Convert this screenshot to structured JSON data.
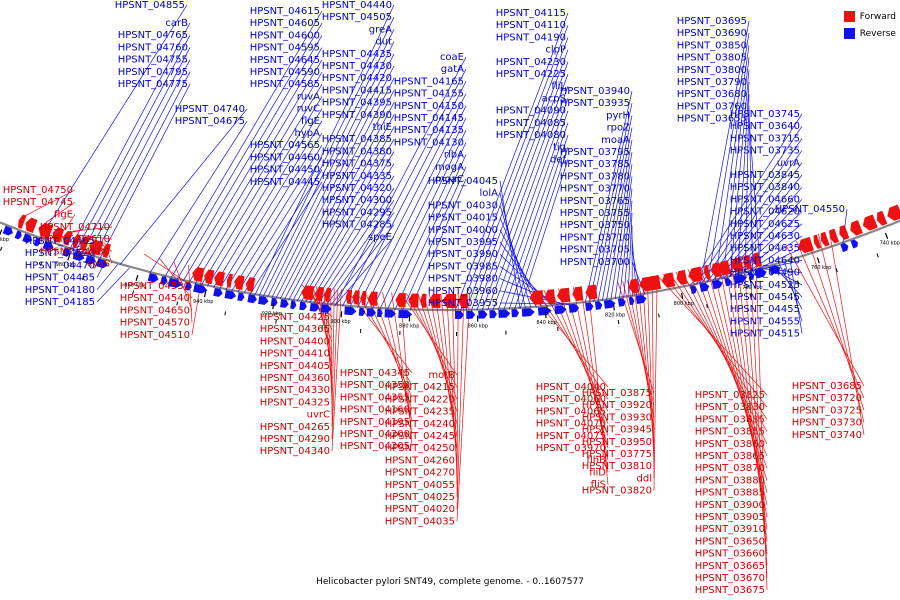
{
  "legend": {
    "forward_label": "Forward",
    "reverse_label": "Reverse",
    "forward_color": "#ee1111",
    "reverse_color": "#1111ee"
  },
  "caption": "Helicobacter pylori SNT49, complete genome. - 0..1607577",
  "colors": {
    "forward": "#ee1111",
    "reverse": "#1111ee",
    "backbone": "#888888",
    "forward_text": "#cc0000",
    "reverse_text": "#0000cc"
  },
  "scale_marks": [
    {
      "label": "1000 kbp",
      "kbp": 1000
    },
    {
      "label": "980 kbp",
      "kbp": 980
    },
    {
      "label": "960 kbp",
      "kbp": 960
    },
    {
      "label": "940 kbp",
      "kbp": 940
    },
    {
      "label": "920 kbp",
      "kbp": 920
    },
    {
      "label": "900 kbp",
      "kbp": 900
    },
    {
      "label": "880 kbp",
      "kbp": 880
    },
    {
      "label": "860 kbp",
      "kbp": 860
    },
    {
      "label": "840 kbp",
      "kbp": 840
    },
    {
      "label": "820 kbp",
      "kbp": 820
    },
    {
      "label": "800 kbp",
      "kbp": 800
    },
    {
      "label": "780 kbp",
      "kbp": 780
    },
    {
      "label": "760 kbp",
      "kbp": 760
    },
    {
      "label": "740 kbp",
      "kbp": 740
    }
  ],
  "reverse_labels": [
    "HPSNT_04855",
    "carB",
    "HPSNT_04765",
    "HPSNT_04760",
    "HPSNT_04755",
    "HPSNT_04795",
    "HPSNT_04775",
    "HPSNT_04740",
    "HPSNT_04675",
    "HPSNT_04615",
    "HPSNT_04605",
    "HPSNT_04600",
    "HPSNT_04595",
    "HPSNT_04645",
    "HPSNT_04590",
    "HPSNT_04585",
    "ruvA",
    "ruvC",
    "flgE",
    "hypA",
    "HPSNT_04565",
    "HPSNT_04460",
    "HPSNT_04450",
    "HPSNT_04445",
    "HPSNT_04440",
    "HPSNT_04505",
    "greA",
    "dut",
    "HPSNT_04435",
    "HPSNT_04430",
    "HPSNT_04420",
    "HPSNT_04415",
    "HPSNT_04395",
    "HPSNT_04390",
    "thiE",
    "HPSNT_04385",
    "HPSNT_04380",
    "HPSNT_04375",
    "HPSNT_04335",
    "HPSNT_04320",
    "HPSNT_04300",
    "HPSNT_04295",
    "HPSNT_04285",
    "speE",
    "coaE",
    "gatA",
    "HPSNT_04165",
    "HPSNT_04155",
    "HPSNT_04150",
    "HPSNT_04145",
    "HPSNT_04135",
    "HPSNT_04130",
    "ribA",
    "mogA",
    "moaC",
    "HPSNT_04115",
    "HPSNT_04110",
    "HPSNT_04190",
    "clpP",
    "HPSNT_04230",
    "HPSNT_04225",
    "fliL",
    "acpS",
    "HPSNT_04090",
    "HPSNT_04085",
    "HPSNT_04080",
    "tig",
    "def",
    "HPSNT_04045",
    "lolA",
    "HPSNT_04030",
    "HPSNT_04015",
    "HPSNT_04000",
    "HPSNT_03995",
    "HPSNT_03990",
    "HPSNT_03985",
    "HPSNT_03980",
    "HPSNT_03960",
    "HPSNT_03955",
    "HPSNT_03940",
    "HPSNT_03935",
    "pyrH",
    "rpoZ",
    "moaA",
    "HPSNT_03795",
    "HPSNT_03785",
    "HPSNT_03780",
    "HPSNT_03770",
    "HPSNT_03765",
    "HPSNT_03755",
    "HPSNT_03750",
    "HPSNT_03710",
    "HPSNT_03705",
    "HPSNT_03700",
    "HPSNT_03695",
    "HPSNT_03690",
    "HPSNT_03850",
    "HPSNT_03805",
    "HPSNT_03800",
    "HPSNT_03790",
    "HPSNT_03680",
    "HPSNT_03760",
    "HPSNT_03655",
    "HPSNT_03745",
    "HPSNT_03640",
    "HPSNT_03715",
    "HPSNT_03735",
    "uvrA",
    "HPSNT_03845",
    "HPSNT_03840",
    "HPSNT_04660",
    "HPSNT_04620",
    "HPSNT_04625",
    "HPSNT_04630",
    "HPSNT_04635",
    "HPSNT_04640",
    "HPSNT_04490",
    "HPSNT_04525",
    "HPSNT_04545",
    "HPSNT_04455",
    "HPSNT_04555",
    "HPSNT_04515",
    "HPSNT_04550",
    "HPSNT_04465",
    "HPSNT_04520",
    "HPSNT_04470",
    "HPSNT_04485",
    "HPSNT_04180",
    "HPSNT_04185"
  ],
  "forward_labels": [
    "HPSNT_04750",
    "HPSNT_04745",
    "flgE",
    "HPSNT_04710",
    "HPSNT_04610",
    "HPSNT_04580",
    "cysS",
    "HPSNT_04530",
    "HPSNT_04540",
    "HPSNT_04650",
    "HPSNT_04570",
    "HPSNT_04510",
    "HPSNT_04425",
    "HPSNT_04365",
    "HPSNT_04400",
    "HPSNT_04410",
    "HPSNT_04405",
    "HPSNT_04360",
    "HPSNT_04330",
    "HPSNT_04325",
    "uvrC",
    "HPSNT_04265",
    "HPSNT_04290",
    "HPSNT_04340",
    "HPSNT_04345",
    "HPSNT_04350",
    "HPSNT_04355",
    "HPSNT_04160",
    "HPSNT_04195",
    "HPSNT_04200",
    "HPSNT_04205",
    "motB",
    "HPSNT_04215",
    "HPSNT_04220",
    "HPSNT_04235",
    "HPSNT_04240",
    "HPSNT_04245",
    "HPSNT_04250",
    "HPSNT_04260",
    "HPSNT_04270",
    "HPSNT_04055",
    "HPSNT_04025",
    "HPSNT_04020",
    "HPSNT_04035",
    "HPSNT_04040",
    "HPSNT_04060",
    "HPSNT_04065",
    "HPSNT_04070",
    "HPSNT_04075",
    "HPSNT_03970",
    "flhB",
    "fliD",
    "fliS",
    "HPSNT_03875",
    "HPSNT_03920",
    "HPSNT_03930",
    "HPSNT_03945",
    "HPSNT_03950",
    "HPSNT_03775",
    "HPSNT_03810",
    "ddl",
    "HPSNT_03820",
    "HPSNT_03825",
    "HPSNT_03830",
    "HPSNT_03835",
    "HPSNT_03855",
    "HPSNT_03860",
    "HPSNT_03865",
    "HPSNT_03870",
    "HPSNT_03880",
    "HPSNT_03885",
    "HPSNT_03900",
    "HPSNT_03905",
    "HPSNT_03910",
    "HPSNT_03650",
    "HPSNT_03660",
    "HPSNT_03665",
    "HPSNT_03670",
    "HPSNT_03675",
    "HPSNT_03685",
    "HPSNT_03720",
    "HPSNT_03725",
    "HPSNT_03730",
    "HPSNT_03740"
  ]
}
